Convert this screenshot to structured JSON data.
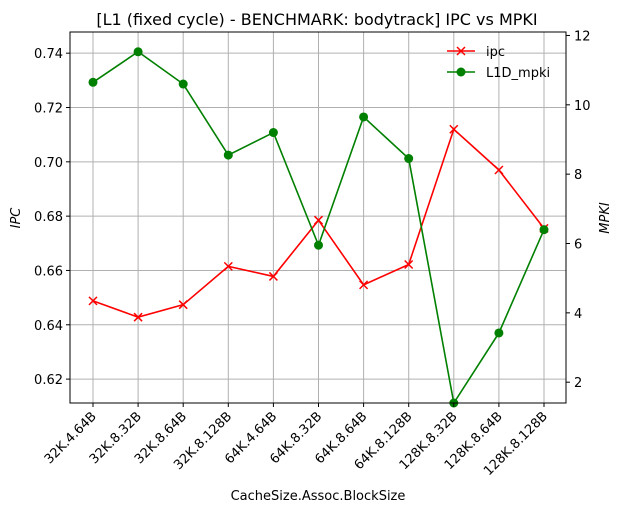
{
  "chart_data": {
    "type": "line",
    "title": "[L1 (fixed cycle) - BENCHMARK: bodytrack]  IPC vs MPKI",
    "xlabel": "CacheSize.Assoc.BlockSize",
    "ylabel_left": "IPC",
    "ylabel_right": "MPKI",
    "categories": [
      "32K.4.64B",
      "32K.8.32B",
      "32K.8.64B",
      "32K.8.128B",
      "64K.4.64B",
      "64K.8.32B",
      "64K.8.64B",
      "64K.8.128B",
      "128K.8.32B",
      "128K.8.64B",
      "128K.8.128B"
    ],
    "grid": true,
    "legend_position": "top-right",
    "left_axis": {
      "ylim": [
        0.6112,
        0.7478
      ],
      "ticks": [
        0.62,
        0.64,
        0.66,
        0.68,
        0.7,
        0.72,
        0.74
      ]
    },
    "right_axis": {
      "ylim": [
        1.4,
        12.1
      ],
      "ticks": [
        2,
        4,
        6,
        8,
        10,
        12
      ]
    },
    "series": [
      {
        "name": "ipc",
        "axis": "left",
        "color": "#ff0000",
        "marker": "x",
        "values": [
          0.6488,
          0.6428,
          0.6474,
          0.6615,
          0.6578,
          0.6785,
          0.6547,
          0.6622,
          0.712,
          0.697,
          0.6755
        ]
      },
      {
        "name": "L1D_mpki",
        "axis": "right",
        "color": "#008000",
        "marker": "circle",
        "values": [
          10.65,
          11.53,
          10.6,
          8.55,
          9.2,
          5.95,
          9.65,
          8.45,
          1.4,
          3.42,
          6.4
        ]
      }
    ]
  }
}
